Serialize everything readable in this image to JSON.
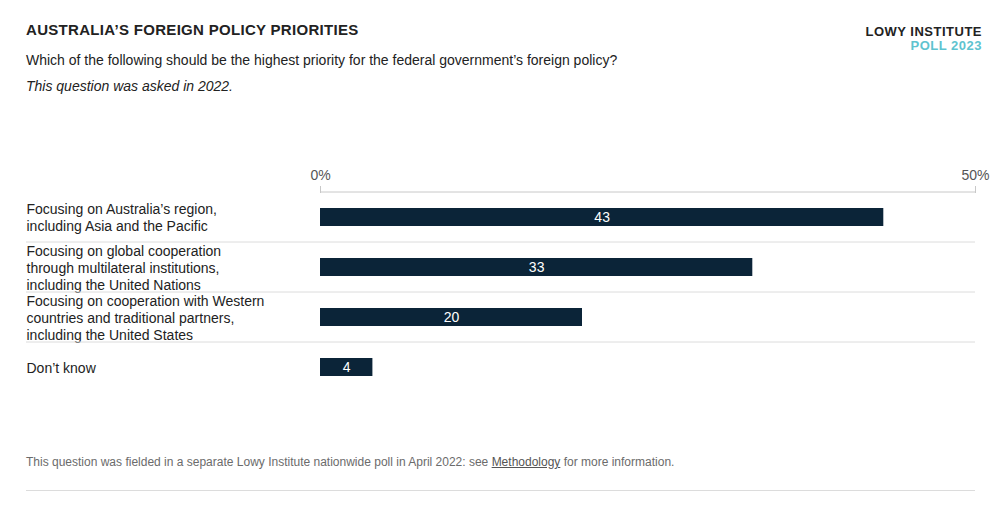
{
  "chart_data": {
    "type": "bar",
    "orientation": "horizontal",
    "title": "AUSTRALIA’S FOREIGN POLICY PRIORITIES",
    "brand": "LOWY INSTITUTE",
    "brand_sub": "POLL 2023",
    "subtitle": "Which of the following should be the highest priority for the federal government’s foreign policy?",
    "subtitle_note": "This question was asked in 2022.",
    "note": "This question was fielded in a separate Lowy Institute nationwide poll in April 2022: see Methodology for more information.",
    "note_link": "Methodology",
    "categories": [
      "Focusing on Australia’s region, including Asia and the Pacific",
      "Focusing on global cooperation through multilateral institutions, including the United Nations",
      "Focusing on cooperation with Western countries and traditional partners, including the United States",
      "Don’t know"
    ],
    "values": [
      43,
      33,
      20,
      4
    ],
    "color": "#0b2438",
    "xlim": [
      0,
      50
    ],
    "xticks": [
      {
        "value": 0,
        "label": "0%"
      },
      {
        "value": 50,
        "label": "50%"
      }
    ],
    "grid": false,
    "data_labels": true
  }
}
